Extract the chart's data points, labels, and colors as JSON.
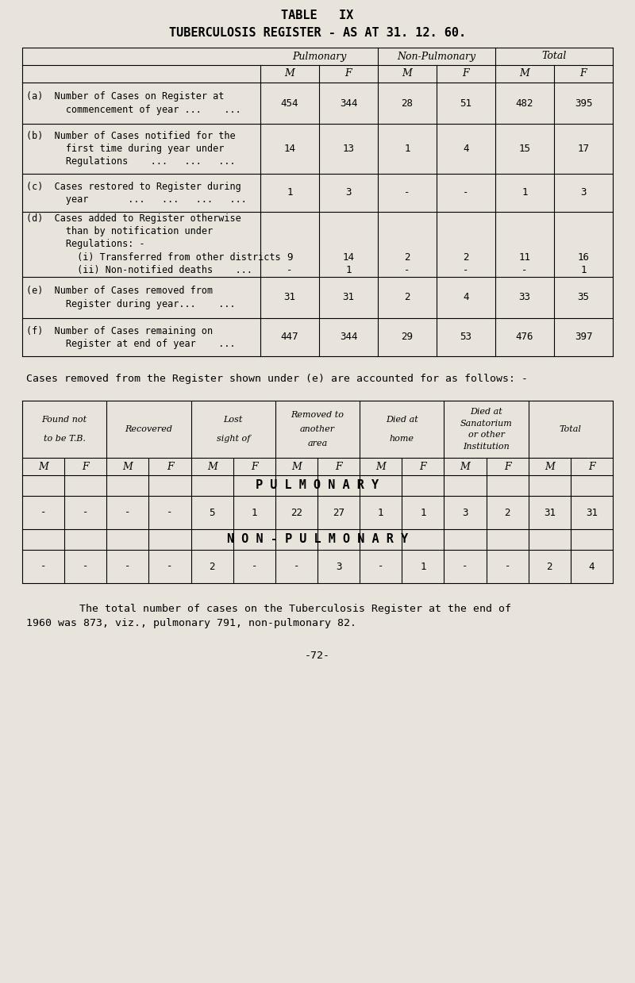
{
  "bg_color": "#e8e4dc",
  "title1": "TABLE   IX",
  "title2": "TUBERCULOSIS REGISTER - AS AT 31. 12. 60.",
  "table1": {
    "col_headers_top": [
      "Pulmonary",
      "Non-Pulmonary",
      "Total"
    ],
    "col_headers_sub": [
      "M",
      "F",
      "M",
      "F",
      "M",
      "F"
    ],
    "rows": [
      {
        "label_lines": [
          "(a)  Number of Cases on Register at",
          "       commencement of year ...    ..."
        ],
        "values": [
          "454",
          "344",
          "28",
          "51",
          "482",
          "395"
        ]
      },
      {
        "label_lines": [
          "(b)  Number of Cases notified for the",
          "       first time during year under",
          "       Regulations    ...   ...   ..."
        ],
        "values": [
          "14",
          "13",
          "1",
          "4",
          "15",
          "17"
        ]
      },
      {
        "label_lines": [
          "(c)  Cases restored to Register during",
          "       year       ...   ...   ...   ..."
        ],
        "values": [
          "1",
          "3",
          "-",
          "-",
          "1",
          "3"
        ]
      },
      {
        "label_lines": [
          "(d)  Cases added to Register otherwise",
          "       than by notification under",
          "       Regulations: -",
          "         (i) Transferred from other districts",
          "         (ii) Non-notified deaths    ..."
        ],
        "values_i": [
          "9",
          "14",
          "2",
          "2",
          "11",
          "16"
        ],
        "values_ii": [
          "-",
          "1",
          "-",
          "-",
          "-",
          "1"
        ]
      },
      {
        "label_lines": [
          "(e)  Number of Cases removed from",
          "       Register during year...    ..."
        ],
        "values": [
          "31",
          "31",
          "2",
          "4",
          "33",
          "35"
        ]
      },
      {
        "label_lines": [
          "(f)  Number of Cases remaining on",
          "       Register at end of year    ..."
        ],
        "values": [
          "447",
          "344",
          "29",
          "53",
          "476",
          "397"
        ]
      }
    ]
  },
  "caption": "Cases removed from the Register shown under (e) are accounted for as follows: -",
  "table2": {
    "col_headers_top": [
      "Found not\nto be T.B.",
      "Recovered",
      "Lost\nsight of",
      "Removed to\nanother\narea",
      "Died at\nhome",
      "Died at\nSanatorium\nor other\nInstitution",
      "Total"
    ],
    "col_headers_sub": [
      "M",
      "F",
      "M",
      "F",
      "M",
      "F",
      "M",
      "F",
      "M",
      "F",
      "M",
      "F",
      "M",
      "F"
    ],
    "pulmonary_label": "P U L M O N A R Y",
    "pulmonary_values": [
      "-",
      "-",
      "-",
      "-",
      "5",
      "1",
      "22",
      "27",
      "1",
      "1",
      "3",
      "2",
      "31",
      "31"
    ],
    "nonpulmonary_label": "N O N - P U L M O N A R Y",
    "nonpulmonary_values": [
      "-",
      "-",
      "-",
      "-",
      "2",
      "-",
      "-",
      "3",
      "-",
      "1",
      "-",
      "-",
      "2",
      "4"
    ]
  },
  "footer_text1": "    The total number of cases on the Tuberculosis Register at the end of",
  "footer_text2": "1960 was 873, viz., pulmonary 791, non-pulmonary 82.",
  "page_number": "-72-"
}
